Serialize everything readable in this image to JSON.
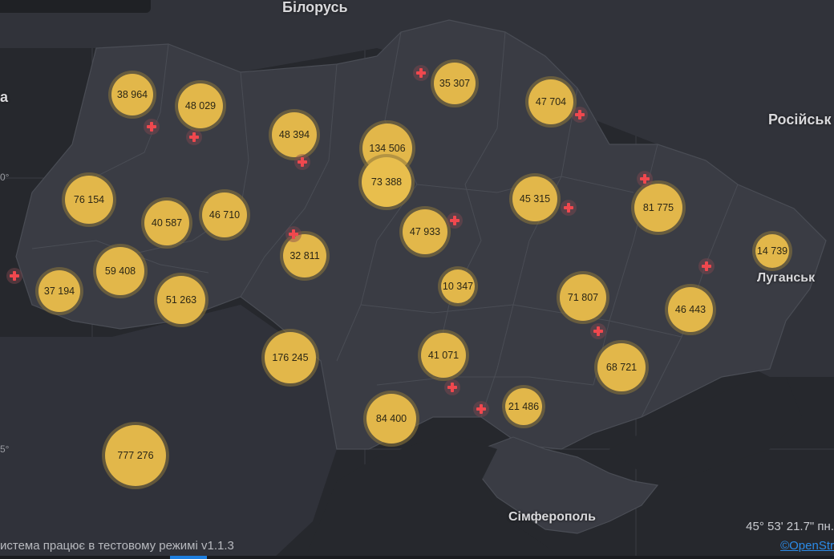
{
  "labels": {
    "belarus": "Білорусь",
    "russia": "Російськ",
    "luhansk": "Луганськ",
    "simferopol": "Сімферополь",
    "left_edge": "а"
  },
  "ticks": {
    "t1": "0°",
    "t2": "5°"
  },
  "status_text": "истема працює в тестовому режимі v1.1.3",
  "coords_text": "45° 53' 21.7\" пн.",
  "attribution": "©OpenStr",
  "clusters": [
    "38 964",
    "48 029",
    "48 394",
    "134 506",
    "73 388",
    "35 307",
    "47 704",
    "76 154",
    "40 587",
    "46 710",
    "45 315",
    "81 775",
    "47 933",
    "32 811",
    "59 408",
    "37 194",
    "51 263",
    "10 347",
    "71 807",
    "46 443",
    "14 739",
    "176 245",
    "41 071",
    "68 721",
    "21 486",
    "84 400",
    "777 276"
  ],
  "colors": {
    "cluster": "#e2b74a",
    "cross": "#f0484e",
    "land": "#3a3c44",
    "water": "#26282d"
  }
}
